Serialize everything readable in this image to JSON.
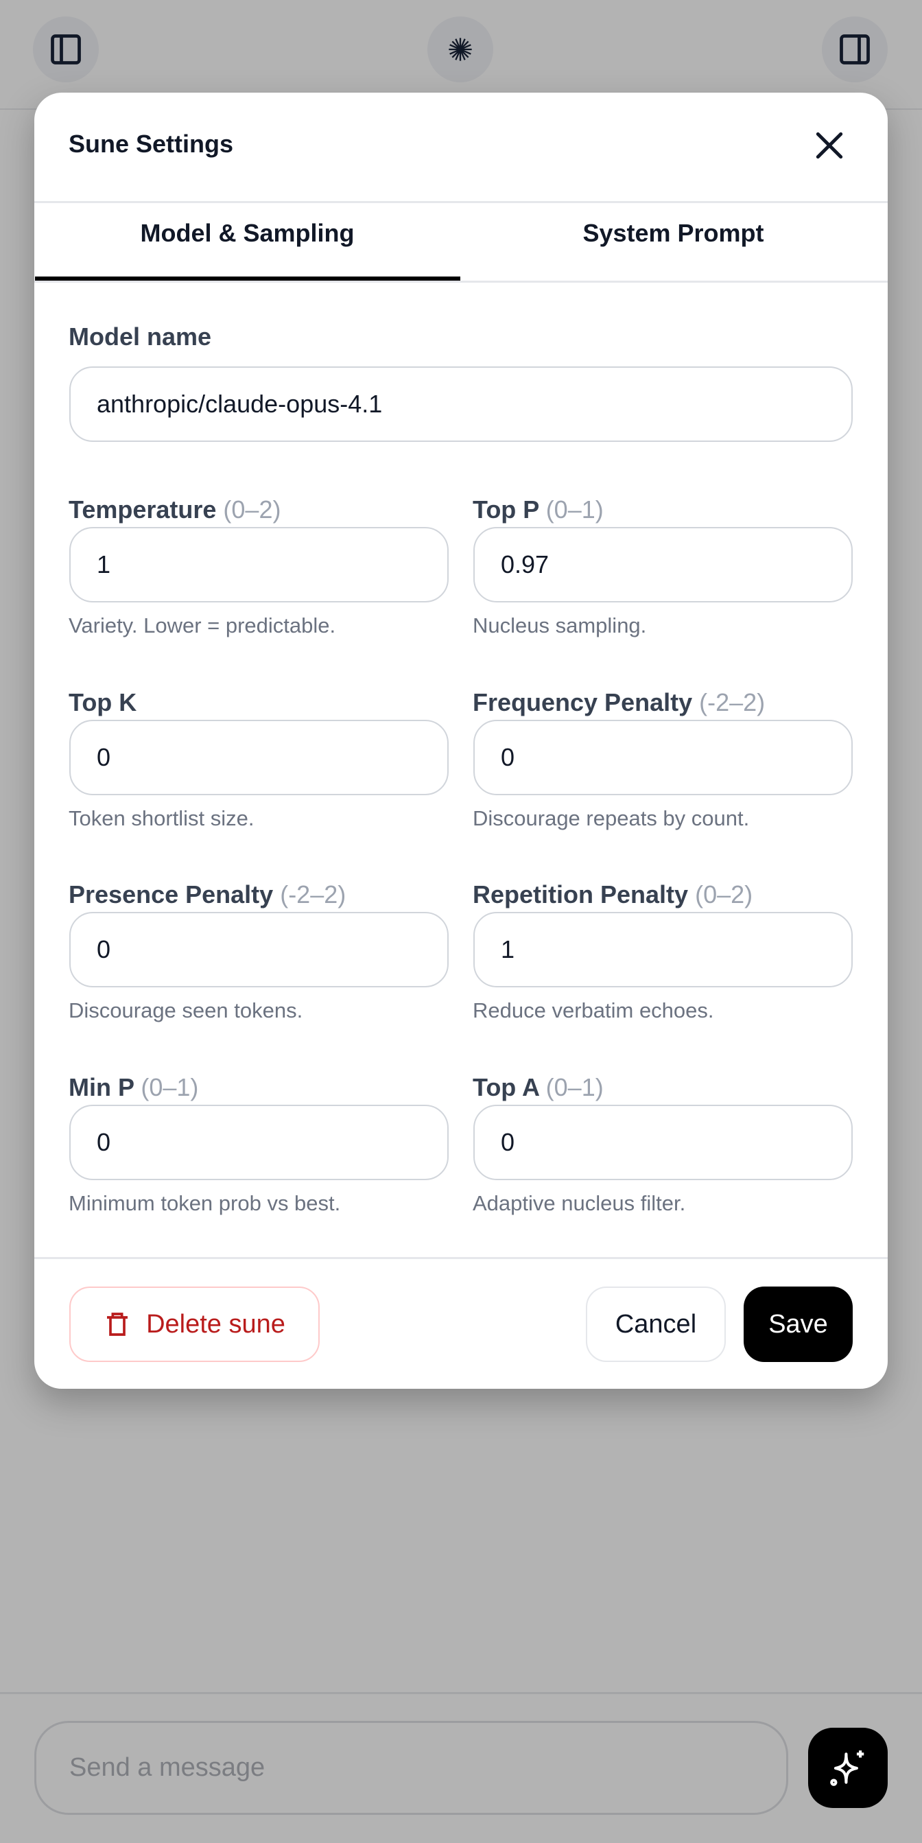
{
  "topbar": {
    "left_icon": "sidebar-left-icon",
    "center_icon": "starburst-logo-icon",
    "right_icon": "sidebar-right-icon"
  },
  "modal": {
    "title": "Sune Settings",
    "tabs": [
      {
        "label": "Model & Sampling",
        "active": true
      },
      {
        "label": "System Prompt",
        "active": false
      }
    ],
    "model_name": {
      "label": "Model name",
      "value": "anthropic/claude-opus-4.1"
    },
    "fields": [
      {
        "label": "Temperature",
        "range": "(0–2)",
        "value": "1",
        "help": "Variety. Lower = predictable."
      },
      {
        "label": "Top P",
        "range": "(0–1)",
        "value": "0.97",
        "help": "Nucleus sampling."
      },
      {
        "label": "Top K",
        "range": "",
        "value": "0",
        "help": "Token shortlist size."
      },
      {
        "label": "Frequency Penalty",
        "range": "(-2–2)",
        "value": "0",
        "help": "Discourage repeats by count."
      },
      {
        "label": "Presence Penalty",
        "range": "(-2–2)",
        "value": "0",
        "help": "Discourage seen tokens."
      },
      {
        "label": "Repetition Penalty",
        "range": "(0–2)",
        "value": "1",
        "help": "Reduce verbatim echoes."
      },
      {
        "label": "Min P",
        "range": "(0–1)",
        "value": "0",
        "help": "Minimum token prob vs best."
      },
      {
        "label": "Top A",
        "range": "(0–1)",
        "value": "0",
        "help": "Adaptive nucleus filter."
      }
    ],
    "delete_label": "Delete sune",
    "cancel_label": "Cancel",
    "save_label": "Save",
    "colors": {
      "danger": "#b91c1c",
      "danger_border": "#fecaca",
      "primary": "#000000"
    }
  },
  "composer": {
    "placeholder": "Send a message",
    "send_icon": "sparkles-icon"
  }
}
